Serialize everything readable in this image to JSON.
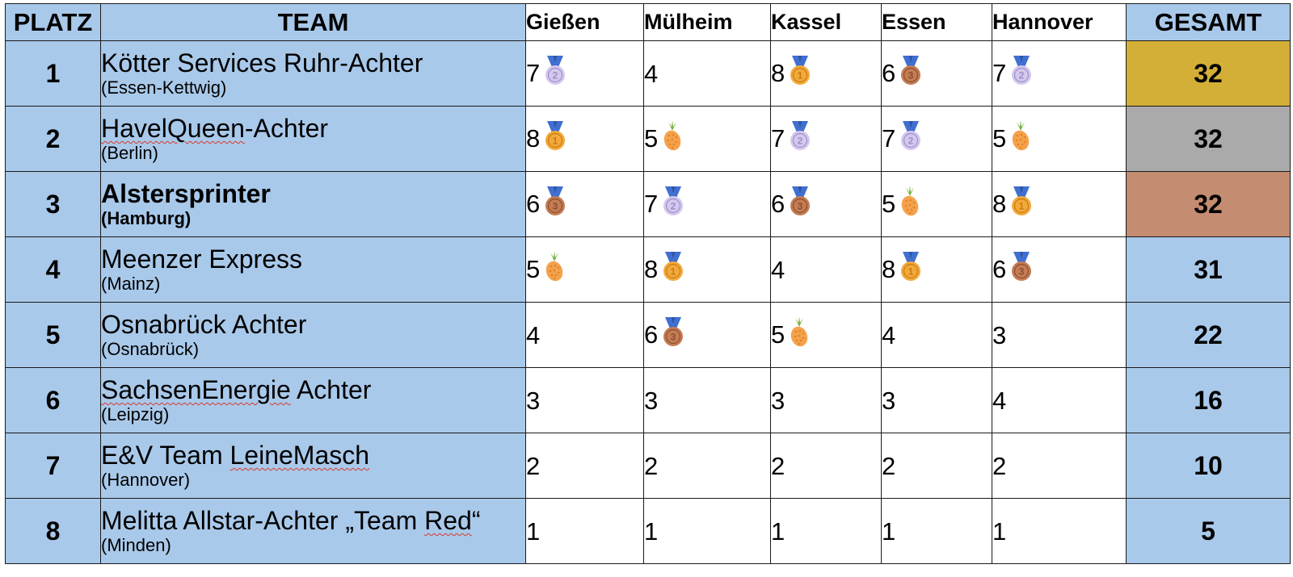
{
  "headers": {
    "platz": "PLATZ",
    "team": "TEAM",
    "races": [
      "Gießen",
      "Mülheim",
      "Kassel",
      "Essen",
      "Hannover"
    ],
    "gesamt": "GESAMT"
  },
  "colors": {
    "header_blue": "#a9c9ea",
    "gold": "#d4af37",
    "silver": "#aaaaaa",
    "bronze": "#c48c71",
    "medal_ribbon": "#3f6fd1"
  },
  "rows": [
    {
      "rank": "1",
      "name_parts": [
        {
          "text": "Kötter Services Ruhr-Achter",
          "flagged": false
        }
      ],
      "city": "(Essen-Kettwig)",
      "bold": false,
      "scores": [
        {
          "value": "7",
          "icon": "silver-medal-icon"
        },
        {
          "value": "4",
          "icon": ""
        },
        {
          "value": "8",
          "icon": "gold-medal-icon"
        },
        {
          "value": "6",
          "icon": "bronze-medal-icon"
        },
        {
          "value": "7",
          "icon": "silver-medal-icon"
        }
      ],
      "total": "32",
      "total_color": "#d4af37"
    },
    {
      "rank": "2",
      "name_parts": [
        {
          "text": "HavelQueen",
          "flagged": true
        },
        {
          "text": "-Achter",
          "flagged": false
        }
      ],
      "city": "(Berlin)",
      "bold": false,
      "scores": [
        {
          "value": "8",
          "icon": "gold-medal-icon"
        },
        {
          "value": "5",
          "icon": "pineapple-icon"
        },
        {
          "value": "7",
          "icon": "silver-medal-icon"
        },
        {
          "value": "7",
          "icon": "silver-medal-icon"
        },
        {
          "value": "5",
          "icon": "pineapple-icon"
        }
      ],
      "total": "32",
      "total_color": "#aaaaaa"
    },
    {
      "rank": "3",
      "name_parts": [
        {
          "text": "Alstersprinter",
          "flagged": false
        }
      ],
      "city": "(Hamburg)",
      "bold": true,
      "scores": [
        {
          "value": "6",
          "icon": "bronze-medal-icon"
        },
        {
          "value": "7",
          "icon": "silver-medal-icon"
        },
        {
          "value": "6",
          "icon": "bronze-medal-icon"
        },
        {
          "value": "5",
          "icon": "pineapple-icon"
        },
        {
          "value": "8",
          "icon": "gold-medal-icon"
        }
      ],
      "total": "32",
      "total_color": "#c48c71"
    },
    {
      "rank": "4",
      "name_parts": [
        {
          "text": "Meenzer Express",
          "flagged": false
        }
      ],
      "city": "(Mainz)",
      "bold": false,
      "scores": [
        {
          "value": "5",
          "icon": "pineapple-icon"
        },
        {
          "value": "8",
          "icon": "gold-medal-icon"
        },
        {
          "value": "4",
          "icon": ""
        },
        {
          "value": "8",
          "icon": "gold-medal-icon"
        },
        {
          "value": "6",
          "icon": "bronze-medal-icon"
        }
      ],
      "total": "31",
      "total_color": "#a9c9ea"
    },
    {
      "rank": "5",
      "name_parts": [
        {
          "text": "Osnabrück Achter",
          "flagged": false
        }
      ],
      "city": "(Osnabrück)",
      "bold": false,
      "scores": [
        {
          "value": "4",
          "icon": ""
        },
        {
          "value": "6",
          "icon": "bronze-medal-icon"
        },
        {
          "value": "5",
          "icon": "pineapple-icon"
        },
        {
          "value": "4",
          "icon": ""
        },
        {
          "value": "3",
          "icon": ""
        }
      ],
      "total": "22",
      "total_color": "#a9c9ea"
    },
    {
      "rank": "6",
      "name_parts": [
        {
          "text": "SachsenEnergie",
          "flagged": true
        },
        {
          "text": " Achter",
          "flagged": false
        }
      ],
      "city": "(Leipzig)",
      "bold": false,
      "scores": [
        {
          "value": "3",
          "icon": ""
        },
        {
          "value": "3",
          "icon": ""
        },
        {
          "value": "3",
          "icon": ""
        },
        {
          "value": "3",
          "icon": ""
        },
        {
          "value": "4",
          "icon": ""
        }
      ],
      "total": "16",
      "total_color": "#a9c9ea"
    },
    {
      "rank": "7",
      "name_parts": [
        {
          "text": "E&V Team ",
          "flagged": false
        },
        {
          "text": "LeineMasch",
          "flagged": true
        }
      ],
      "city": "(Hannover)",
      "bold": false,
      "scores": [
        {
          "value": "2",
          "icon": ""
        },
        {
          "value": "2",
          "icon": ""
        },
        {
          "value": "2",
          "icon": ""
        },
        {
          "value": "2",
          "icon": ""
        },
        {
          "value": "2",
          "icon": ""
        }
      ],
      "total": "10",
      "total_color": "#a9c9ea"
    },
    {
      "rank": "8",
      "name_parts": [
        {
          "text": "Melitta Allstar-Achter „Team ",
          "flagged": false
        },
        {
          "text": "Red",
          "flagged": true
        },
        {
          "text": "“",
          "flagged": false
        }
      ],
      "city": "(Minden)",
      "bold": false,
      "scores": [
        {
          "value": "1",
          "icon": ""
        },
        {
          "value": "1",
          "icon": ""
        },
        {
          "value": "1",
          "icon": ""
        },
        {
          "value": "1",
          "icon": ""
        },
        {
          "value": "1",
          "icon": ""
        }
      ],
      "total": "5",
      "total_color": "#a9c9ea"
    }
  ]
}
